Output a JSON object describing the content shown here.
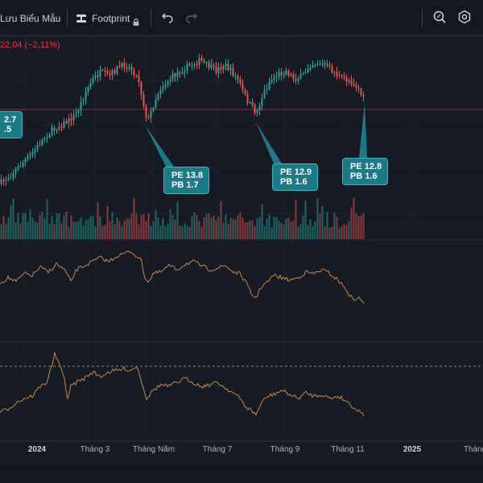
{
  "toolbar": {
    "save_label": "Lưu Biểu Mẫu",
    "footprint_label": "Footprint",
    "icons": [
      "footprint-logo-icon",
      "lock-icon",
      "undo-icon",
      "redo-icon",
      "search-icon",
      "settings-icon"
    ]
  },
  "price_change": "22,04 (−2,11%)",
  "callouts": {
    "left": {
      "pe": "2.7",
      "pb": ".5"
    },
    "c1": {
      "pe": "PE 13.8",
      "pb": "PB 1.7"
    },
    "c2": {
      "pe": "PE 12.9",
      "pb": "PB 1.6"
    },
    "c3": {
      "pe": "PE 12.8",
      "pb": "PB 1.6"
    }
  },
  "x_axis": [
    {
      "label": "2024",
      "bold": true
    },
    {
      "label": "Tháng 3",
      "bold": false
    },
    {
      "label": "Tháng Năm",
      "bold": false
    },
    {
      "label": "Tháng 7",
      "bold": false
    },
    {
      "label": "Tháng 9",
      "bold": false
    },
    {
      "label": "Tháng 11",
      "bold": false
    },
    {
      "label": "2025",
      "bold": true
    },
    {
      "label": "Tháng",
      "bold": false
    }
  ],
  "colors": {
    "background": "#161a25",
    "up": "#26a69a",
    "down": "#ef5350",
    "indicator": "#c88a4a",
    "callout": "#1b7a86",
    "last_price_line": "#f23645"
  }
}
